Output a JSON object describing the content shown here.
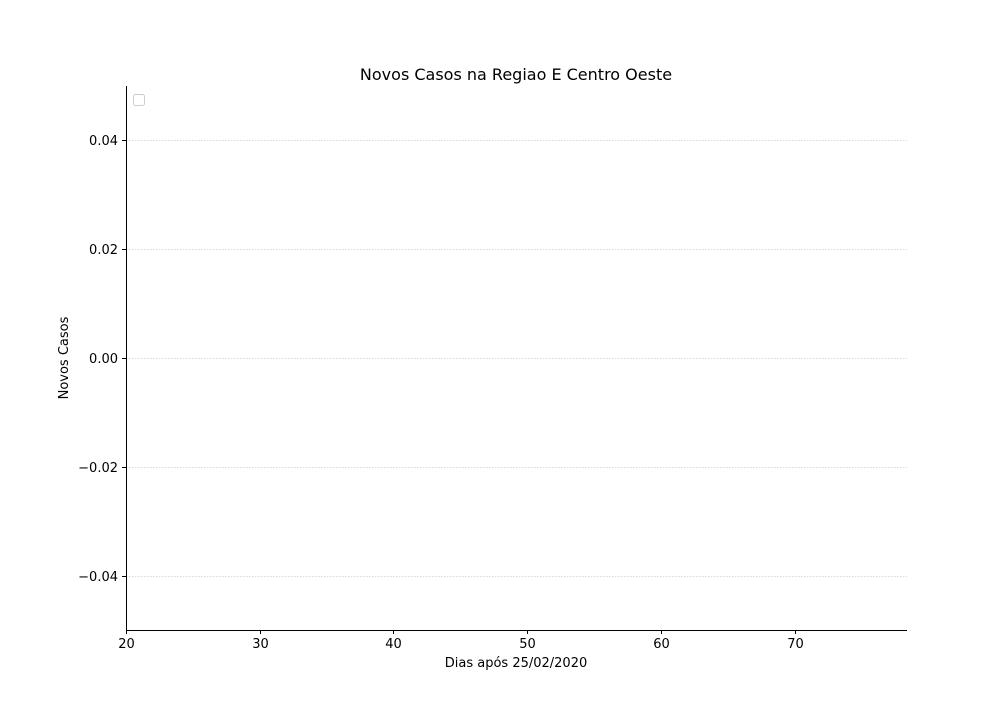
{
  "chart_data": {
    "type": "line",
    "title": "Novos Casos na Regiao E Centro Oeste",
    "xlabel": "Dias após 25/02/2020",
    "ylabel": "Novos Casos",
    "xlim": [
      20,
      78.4
    ],
    "ylim": [
      -0.05,
      0.05
    ],
    "xticks": [
      20,
      30,
      40,
      50,
      60,
      70
    ],
    "xtick_labels": [
      "20",
      "30",
      "40",
      "50",
      "60",
      "70"
    ],
    "yticks": [
      0.04,
      0.02,
      0.0,
      -0.02,
      -0.04
    ],
    "ytick_labels": [
      "0.04",
      "0.02",
      "0.00",
      "−0.02",
      "−0.04"
    ],
    "grid": "horizontal dotted",
    "legend_placement": "top-left",
    "legend_entries": [],
    "series": []
  }
}
